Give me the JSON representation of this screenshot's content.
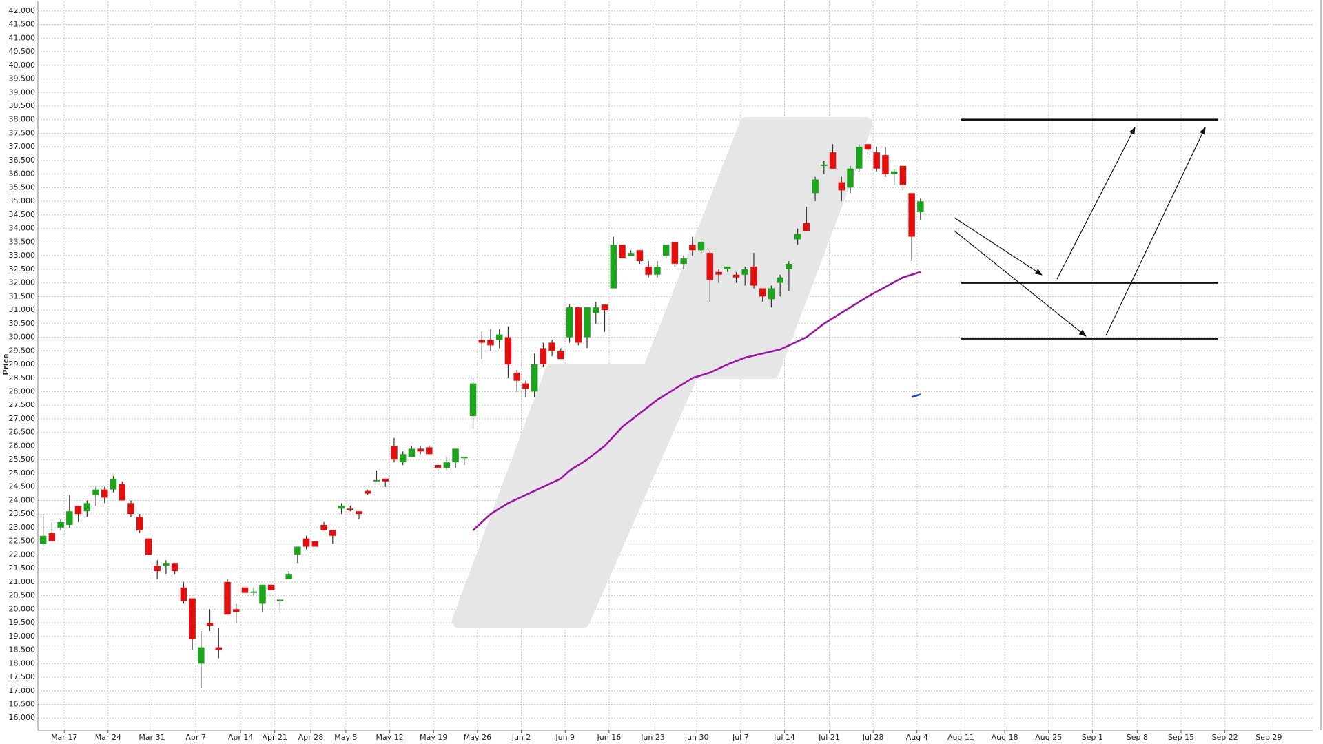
{
  "chart_data": {
    "type": "candlestick",
    "y_label": "Price",
    "up_color": "#1ca51c",
    "down_color": "#e30e0e",
    "grid": true,
    "xlim": [
      -0.6,
      144.7
    ],
    "ylim": [
      15.55,
      42.35
    ],
    "x": [
      0,
      1,
      2,
      3,
      4,
      5,
      6,
      7,
      8,
      9,
      10,
      11,
      12,
      13,
      14,
      15,
      16,
      17,
      18,
      19,
      20,
      21,
      22,
      23,
      24,
      25,
      26,
      27,
      28,
      29,
      30,
      31,
      32,
      33,
      34,
      35,
      36,
      37,
      38,
      39,
      40,
      41,
      42,
      43,
      44,
      45,
      46,
      47,
      48,
      49,
      50,
      51,
      52,
      53,
      54,
      55,
      56,
      57,
      58,
      59,
      60,
      61,
      62,
      63,
      64,
      65,
      66,
      67,
      68,
      69,
      70,
      71,
      72,
      73,
      74,
      75,
      76,
      77,
      78,
      79,
      80,
      81,
      82,
      83,
      84,
      85,
      86,
      87,
      88,
      89,
      90,
      91,
      92,
      93,
      94,
      95,
      96,
      97,
      98,
      99,
      100
    ],
    "open": [
      22.4,
      22.8,
      23.0,
      23.1,
      23.8,
      23.6,
      24.2,
      24.4,
      24.4,
      24.6,
      23.9,
      23.4,
      22.6,
      21.6,
      21.6,
      21.7,
      20.8,
      20.4,
      18.0,
      19.5,
      18.6,
      21.0,
      20.0,
      20.8,
      20.6,
      20.2,
      20.9,
      20.3,
      21.1,
      22.0,
      22.6,
      22.5,
      23.1,
      22.9,
      23.7,
      23.7,
      23.6,
      24.35,
      24.7,
      24.8,
      26.0,
      25.4,
      25.6,
      25.9,
      25.95,
      25.3,
      25.2,
      25.4,
      25.55,
      27.1,
      29.9,
      29.9,
      29.9,
      30.0,
      28.7,
      28.3,
      28.0,
      29.6,
      29.8,
      29.5,
      30.0,
      31.1,
      30.0,
      30.9,
      31.2,
      31.8,
      33.4,
      33.0,
      33.2,
      32.6,
      32.3,
      33.0,
      33.5,
      32.7,
      33.4,
      33.2,
      33.1,
      32.4,
      32.5,
      32.3,
      32.3,
      32.6,
      31.8,
      31.4,
      32.0,
      32.5,
      33.6,
      34.2,
      35.3,
      36.3,
      36.8,
      35.7,
      35.5,
      36.2,
      37.1,
      36.8,
      36.7,
      36.0,
      36.3,
      35.3,
      34.6
    ],
    "high": [
      23.5,
      23.2,
      23.3,
      24.2,
      23.8,
      24.0,
      24.5,
      24.5,
      24.9,
      24.7,
      24.0,
      23.5,
      22.6,
      21.8,
      21.8,
      21.7,
      21.0,
      20.4,
      19.2,
      20.0,
      19.3,
      21.1,
      20.2,
      20.8,
      20.8,
      20.9,
      20.9,
      20.4,
      21.4,
      22.3,
      22.7,
      22.5,
      23.2,
      22.9,
      23.9,
      23.8,
      23.6,
      24.4,
      25.1,
      24.8,
      26.3,
      25.8,
      26.0,
      26.0,
      26.0,
      25.3,
      25.6,
      25.9,
      25.6,
      28.5,
      30.2,
      30.3,
      30.3,
      30.4,
      28.8,
      28.4,
      29.4,
      29.8,
      29.9,
      29.6,
      31.2,
      31.1,
      31.1,
      31.3,
      31.2,
      33.7,
      33.4,
      33.2,
      33.2,
      32.8,
      32.8,
      33.4,
      33.5,
      33.0,
      33.7,
      33.6,
      33.2,
      32.5,
      32.6,
      32.4,
      32.6,
      33.1,
      31.8,
      31.9,
      32.3,
      32.8,
      34.0,
      34.8,
      35.9,
      36.5,
      37.1,
      35.9,
      36.3,
      37.1,
      37.1,
      37.0,
      37.0,
      36.2,
      36.3,
      35.3,
      35.1
    ],
    "low": [
      22.3,
      22.5,
      22.9,
      23.0,
      23.2,
      23.4,
      23.8,
      23.9,
      24.3,
      24.0,
      23.4,
      22.8,
      22.0,
      21.1,
      21.3,
      21.3,
      20.2,
      18.5,
      17.1,
      19.2,
      18.2,
      19.8,
      19.5,
      20.6,
      20.5,
      19.9,
      20.7,
      19.9,
      21.1,
      21.7,
      22.2,
      22.3,
      22.9,
      22.4,
      23.5,
      23.6,
      23.3,
      24.2,
      24.7,
      24.5,
      25.4,
      25.3,
      25.6,
      25.7,
      25.7,
      25.0,
      25.1,
      25.2,
      25.3,
      26.6,
      29.2,
      29.5,
      29.6,
      28.5,
      28.0,
      27.8,
      27.8,
      28.9,
      29.3,
      29.2,
      29.8,
      29.7,
      29.6,
      30.5,
      30.2,
      31.8,
      32.9,
      33.0,
      32.7,
      32.2,
      32.2,
      32.9,
      32.6,
      32.5,
      33.0,
      33.1,
      31.3,
      32.0,
      32.4,
      32.0,
      31.9,
      31.8,
      31.3,
      31.1,
      31.5,
      31.7,
      33.4,
      33.9,
      35.0,
      36.0,
      36.2,
      35.0,
      35.3,
      36.1,
      36.7,
      36.1,
      35.9,
      35.6,
      35.4,
      32.8,
      34.3
    ],
    "close": [
      22.7,
      22.5,
      23.2,
      23.6,
      23.5,
      23.9,
      24.4,
      24.1,
      24.8,
      24.0,
      23.5,
      22.9,
      22.0,
      21.4,
      21.7,
      21.4,
      20.3,
      18.9,
      18.6,
      19.4,
      18.5,
      19.8,
      19.9,
      20.6,
      20.65,
      20.9,
      20.7,
      20.35,
      21.3,
      22.3,
      22.3,
      22.3,
      22.9,
      22.7,
      23.8,
      23.65,
      23.5,
      24.25,
      24.75,
      24.7,
      25.5,
      25.7,
      25.9,
      25.8,
      25.7,
      25.2,
      25.4,
      25.9,
      25.6,
      28.3,
      29.8,
      29.7,
      30.1,
      29.0,
      28.4,
      28.1,
      29.0,
      29.0,
      29.5,
      29.2,
      31.1,
      29.8,
      31.1,
      31.1,
      31.0,
      33.4,
      32.9,
      33.1,
      32.8,
      32.3,
      32.6,
      33.4,
      32.7,
      32.9,
      33.2,
      33.5,
      32.1,
      32.3,
      32.6,
      32.2,
      32.5,
      31.9,
      31.5,
      31.8,
      32.2,
      32.7,
      33.8,
      33.9,
      35.8,
      36.35,
      36.2,
      35.4,
      36.2,
      37.0,
      36.9,
      36.2,
      36.0,
      36.1,
      35.6,
      33.7,
      35.0
    ],
    "lines": [
      {
        "color": "#a011a8",
        "x": [
          49,
          51,
          53,
          55,
          57,
          59,
          60,
          62,
          64,
          66,
          68,
          70,
          72,
          74,
          76,
          78,
          80,
          82,
          84,
          85,
          87,
          89,
          90,
          92,
          94,
          96,
          98,
          100
        ],
        "values": [
          22.9,
          23.5,
          23.9,
          24.2,
          24.5,
          24.8,
          25.1,
          25.5,
          26.0,
          26.7,
          27.2,
          27.7,
          28.1,
          28.5,
          28.7,
          29.0,
          29.25,
          29.4,
          29.55,
          29.7,
          30.0,
          30.5,
          30.7,
          31.1,
          31.5,
          31.85,
          32.2,
          32.4
        ]
      },
      {
        "color": "#1443d6",
        "x": [
          99,
          100
        ],
        "values": [
          27.8,
          27.9
        ]
      }
    ],
    "levels": [
      38.0,
      32.0,
      29.95
    ],
    "xticks": [
      {
        "value": 2.4,
        "label": "Mar 17"
      },
      {
        "value": 7.4,
        "label": "Mar 24"
      },
      {
        "value": 12.4,
        "label": "Mar 31"
      },
      {
        "value": 17.4,
        "label": "Apr 7"
      },
      {
        "value": 22.5,
        "label": "Apr 14"
      },
      {
        "value": 26.4,
        "label": "Apr 21"
      },
      {
        "value": 30.5,
        "label": "Apr 28"
      },
      {
        "value": 34.5,
        "label": "May 5"
      },
      {
        "value": 39.5,
        "label": "May 12"
      },
      {
        "value": 44.5,
        "label": "May 19"
      },
      {
        "value": 49.5,
        "label": "May 26"
      },
      {
        "value": 54.5,
        "label": "Jun 2"
      },
      {
        "value": 59.5,
        "label": "Jun 9"
      },
      {
        "value": 64.5,
        "label": "Jun 16"
      },
      {
        "value": 69.5,
        "label": "Jun 23"
      },
      {
        "value": 74.5,
        "label": "Jun 30"
      },
      {
        "value": 79.5,
        "label": "Jul 7"
      },
      {
        "value": 84.5,
        "label": "Jul 14"
      },
      {
        "value": 89.6,
        "label": "Jul 21"
      },
      {
        "value": 94.6,
        "label": "Jul 28"
      },
      {
        "value": 99.6,
        "label": "Aug 4"
      },
      {
        "value": 104.6,
        "label": "Aug 11"
      },
      {
        "value": 109.6,
        "label": "Aug 18"
      },
      {
        "value": 114.6,
        "label": "Aug 25"
      },
      {
        "value": 119.6,
        "label": "Sep 1"
      },
      {
        "value": 124.7,
        "label": "Sep 8"
      },
      {
        "value": 129.7,
        "label": "Sep 15"
      },
      {
        "value": 134.7,
        "label": "Sep 22"
      },
      {
        "value": 139.7,
        "label": "Sep 29"
      }
    ],
    "yticks": [
      {
        "value": 16,
        "label": "16.000"
      },
      {
        "value": 16.5,
        "label": "16.500"
      },
      {
        "value": 17,
        "label": "17.000"
      },
      {
        "value": 17.5,
        "label": "17.500"
      },
      {
        "value": 18,
        "label": "18.000"
      },
      {
        "value": 18.5,
        "label": "18.500"
      },
      {
        "value": 19,
        "label": "19.000"
      },
      {
        "value": 19.5,
        "label": "19.500"
      },
      {
        "value": 20,
        "label": "20.000"
      },
      {
        "value": 20.5,
        "label": "20.500"
      },
      {
        "value": 21,
        "label": "21.000"
      },
      {
        "value": 21.5,
        "label": "21.500"
      },
      {
        "value": 22,
        "label": "22.000"
      },
      {
        "value": 22.5,
        "label": "22.500"
      },
      {
        "value": 23,
        "label": "23.000"
      },
      {
        "value": 23.5,
        "label": "23.500"
      },
      {
        "value": 24,
        "label": "24.000"
      },
      {
        "value": 24.5,
        "label": "24.500"
      },
      {
        "value": 25,
        "label": "25.000"
      },
      {
        "value": 25.5,
        "label": "25.500"
      },
      {
        "value": 26,
        "label": "26.000"
      },
      {
        "value": 26.5,
        "label": "26.500"
      },
      {
        "value": 27,
        "label": "27.000"
      },
      {
        "value": 27.5,
        "label": "27.500"
      },
      {
        "value": 28,
        "label": "28.000"
      },
      {
        "value": 28.5,
        "label": "28.500"
      },
      {
        "value": 29,
        "label": "29.000"
      },
      {
        "value": 29.5,
        "label": "29.500"
      },
      {
        "value": 30,
        "label": "30.000"
      },
      {
        "value": 30.5,
        "label": "30.500"
      },
      {
        "value": 31,
        "label": "31.000"
      },
      {
        "value": 31.5,
        "label": "31.500"
      },
      {
        "value": 32,
        "label": "32.000"
      },
      {
        "value": 32.5,
        "label": "32.500"
      },
      {
        "value": 33,
        "label": "33.000"
      },
      {
        "value": 33.5,
        "label": "33.500"
      },
      {
        "value": 34,
        "label": "34.000"
      },
      {
        "value": 34.5,
        "label": "34.500"
      },
      {
        "value": 35,
        "label": "35.000"
      },
      {
        "value": 35.5,
        "label": "35.500"
      },
      {
        "value": 36,
        "label": "36.000"
      },
      {
        "value": 36.5,
        "label": "36.500"
      },
      {
        "value": 37,
        "label": "37.000"
      },
      {
        "value": 37.5,
        "label": "37.500"
      },
      {
        "value": 38,
        "label": "38.000"
      },
      {
        "value": 38.5,
        "label": "38.500"
      },
      {
        "value": 39,
        "label": "39.000"
      },
      {
        "value": 39.5,
        "label": "39.500"
      },
      {
        "value": 40,
        "label": "40.000"
      },
      {
        "value": 40.5,
        "label": "40.500"
      },
      {
        "value": 41,
        "label": "41.000"
      },
      {
        "value": 41.5,
        "label": "41.500"
      },
      {
        "value": 42,
        "label": "42.000"
      }
    ]
  }
}
